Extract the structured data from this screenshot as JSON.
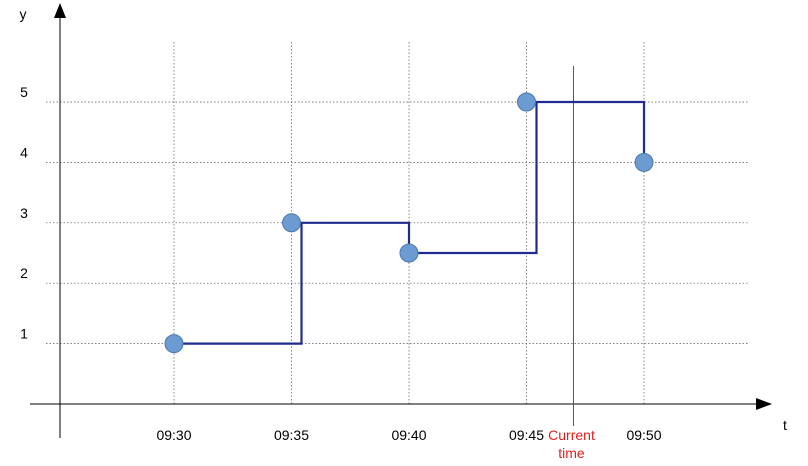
{
  "chart_data": {
    "type": "line",
    "step": true,
    "xlabel": "t",
    "ylabel": "y",
    "x_tick_labels": [
      "09:30",
      "09:35",
      "09:40",
      "09:45",
      "09:50"
    ],
    "x_ticks_minutes": [
      30,
      35,
      40,
      45,
      50
    ],
    "y_ticks": [
      1,
      2,
      3,
      4,
      5
    ],
    "xlim_minutes": [
      25,
      55
    ],
    "ylim": [
      0,
      6
    ],
    "grid": true,
    "series": [
      {
        "x": [
          "09:30",
          "09:35",
          "09:40",
          "09:45",
          "09:50"
        ],
        "y": [
          1,
          3,
          2.5,
          5,
          4
        ],
        "color": "#1f2b8f",
        "marker_color": "#6b9bd1"
      }
    ],
    "annotations": [
      {
        "type": "vline",
        "x": "09:47",
        "label": "Current\ntime",
        "color": "#e02020"
      }
    ]
  }
}
